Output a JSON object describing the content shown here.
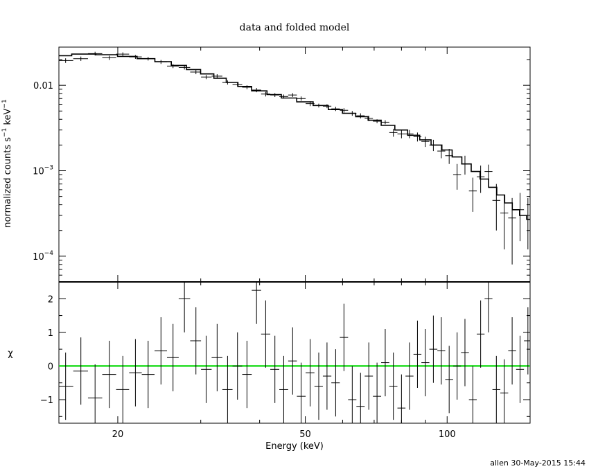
{
  "chart_data": {
    "title": "data and folded model",
    "footer": "allen 30-May-2015 15:44",
    "x_axis": {
      "label": "Energy (keV)",
      "scale": "log",
      "range": [
        15,
        150
      ],
      "tick_labels": [
        {
          "value": 20,
          "label": "20"
        },
        {
          "value": 50,
          "label": "50"
        },
        {
          "value": 100,
          "label": "100"
        }
      ]
    },
    "panels": [
      {
        "type": "scatter",
        "name": "spectrum",
        "ylabel": "normalized counts s",
        "ylabel_sup1": "−1",
        "ylabel_mid": " keV",
        "ylabel_sup2": "−1",
        "yscale": "log",
        "ylim": [
          5e-05,
          0.028
        ],
        "ytick_labels": [
          {
            "value": 0.01,
            "label": "0.01"
          },
          {
            "value": 0.001,
            "base": "10",
            "exp": "−3"
          },
          {
            "value": 0.0001,
            "base": "10",
            "exp": "−4"
          }
        ],
        "model_color": "#000000",
        "data": [
          [
            15.5,
            0.0195,
            0.0012
          ],
          [
            16.7,
            0.0205,
            0.0012
          ],
          [
            17.9,
            0.0235,
            0.0012
          ],
          [
            19.2,
            0.021,
            0.0012
          ],
          [
            20.5,
            0.0232,
            0.0011
          ],
          [
            21.8,
            0.0215,
            0.0011
          ],
          [
            23.2,
            0.0205,
            0.001
          ],
          [
            24.7,
            0.0188,
            0.001
          ],
          [
            26.2,
            0.0168,
            0.0009
          ],
          [
            27.7,
            0.0162,
            0.0009
          ],
          [
            29.3,
            0.0143,
            0.0008
          ],
          [
            30.8,
            0.0125,
            0.0007
          ],
          [
            32.5,
            0.0128,
            0.0007
          ],
          [
            34.2,
            0.0108,
            0.0006
          ],
          [
            35.9,
            0.0102,
            0.0006
          ],
          [
            37.6,
            0.0095,
            0.0005
          ],
          [
            39.4,
            0.0088,
            0.0005
          ],
          [
            41.2,
            0.0079,
            0.0005
          ],
          [
            43.1,
            0.0077,
            0.0004
          ],
          [
            45.0,
            0.0074,
            0.0004
          ],
          [
            47.0,
            0.0077,
            0.0004
          ],
          [
            49.0,
            0.007,
            0.0004
          ],
          [
            51.2,
            0.0061,
            0.0004
          ],
          [
            53.4,
            0.0058,
            0.0003
          ],
          [
            55.6,
            0.0057,
            0.0003
          ],
          [
            58.0,
            0.0053,
            0.0003
          ],
          [
            60.4,
            0.0051,
            0.0003
          ],
          [
            62.9,
            0.0047,
            0.0003
          ],
          [
            65.5,
            0.0044,
            0.0003
          ],
          [
            68.2,
            0.0041,
            0.0003
          ],
          [
            71.0,
            0.0038,
            0.0002
          ],
          [
            73.9,
            0.0037,
            0.0002
          ],
          [
            76.9,
            0.0028,
            0.0003
          ],
          [
            80.0,
            0.0027,
            0.0003
          ],
          [
            83.2,
            0.0027,
            0.0003
          ],
          [
            86.5,
            0.0025,
            0.0003
          ],
          [
            89.9,
            0.0022,
            0.0003
          ],
          [
            93.5,
            0.002,
            0.0003
          ],
          [
            97.2,
            0.0017,
            0.0003
          ],
          [
            101.0,
            0.0015,
            0.0003
          ],
          [
            105.0,
            0.0009,
            0.0003
          ],
          [
            109.1,
            0.0012,
            0.0003
          ],
          [
            113.4,
            0.00058,
            0.00025
          ],
          [
            117.8,
            0.00085,
            0.0003
          ],
          [
            122.4,
            0.00098,
            0.0002
          ],
          [
            127.2,
            0.00045,
            0.00025
          ],
          [
            132.2,
            0.00032,
            0.0002
          ],
          [
            137.4,
            0.00028,
            0.0002
          ],
          [
            142.8,
            0.00035,
            0.0002
          ],
          [
            148.4,
            0.0003,
            0.00018
          ]
        ],
        "model": [
          [
            15.0,
            0.0222
          ],
          [
            17.0,
            0.0232
          ],
          [
            19.0,
            0.0228
          ],
          [
            21.0,
            0.0218
          ],
          [
            23.0,
            0.0205
          ],
          [
            25.0,
            0.0189
          ],
          [
            27.0,
            0.0171
          ],
          [
            29.0,
            0.0153
          ],
          [
            31.0,
            0.0136
          ],
          [
            33.0,
            0.0121
          ],
          [
            35.0,
            0.0108
          ],
          [
            37.0,
            0.0097
          ],
          [
            40.0,
            0.0086
          ],
          [
            43.0,
            0.0078
          ],
          [
            46.0,
            0.0071
          ],
          [
            50.0,
            0.0064
          ],
          [
            54.0,
            0.0058
          ],
          [
            58.0,
            0.0052
          ],
          [
            62.0,
            0.0047
          ],
          [
            66.0,
            0.0043
          ],
          [
            70.0,
            0.0039
          ],
          [
            75.0,
            0.0034
          ],
          [
            80.0,
            0.003
          ],
          [
            85.0,
            0.0026
          ],
          [
            90.0,
            0.0023
          ],
          [
            95.0,
            0.002
          ],
          [
            100.0,
            0.00175
          ],
          [
            105.0,
            0.00145
          ],
          [
            110.0,
            0.0012
          ],
          [
            115.0,
            0.00098
          ],
          [
            120.0,
            0.0008
          ],
          [
            125.0,
            0.00064
          ],
          [
            130.0,
            0.00052
          ],
          [
            135.0,
            0.00042
          ],
          [
            140.0,
            0.00035
          ],
          [
            145.0,
            0.0003
          ],
          [
            150.0,
            0.00027
          ]
        ]
      },
      {
        "type": "scatter",
        "name": "residuals",
        "ylabel": "χ",
        "yscale": "linear",
        "ylim": [
          -1.7,
          2.5
        ],
        "ytick_labels": [
          {
            "value": 2,
            "label": "2"
          },
          {
            "value": 1,
            "label": "1"
          },
          {
            "value": 0,
            "label": "0"
          },
          {
            "value": -1,
            "label": "−1"
          }
        ],
        "zero_line_color": "#22dd22",
        "data": [
          [
            15.5,
            -0.6,
            1.0
          ],
          [
            16.7,
            -0.15,
            1.0
          ],
          [
            17.9,
            -0.95,
            1.0
          ],
          [
            19.2,
            -0.25,
            1.0
          ],
          [
            20.5,
            -0.7,
            1.0
          ],
          [
            21.8,
            -0.2,
            1.0
          ],
          [
            23.2,
            -0.25,
            1.0
          ],
          [
            24.7,
            0.45,
            1.0
          ],
          [
            26.2,
            0.25,
            1.0
          ],
          [
            27.7,
            2.0,
            1.0
          ],
          [
            29.3,
            0.75,
            1.0
          ],
          [
            30.8,
            -0.1,
            1.0
          ],
          [
            32.5,
            0.25,
            1.0
          ],
          [
            34.2,
            -0.7,
            1.0
          ],
          [
            35.9,
            0.0,
            1.0
          ],
          [
            37.6,
            -0.25,
            1.0
          ],
          [
            39.4,
            2.25,
            1.0
          ],
          [
            41.2,
            0.95,
            1.0
          ],
          [
            43.1,
            -0.1,
            1.0
          ],
          [
            45.0,
            -0.7,
            1.0
          ],
          [
            47.0,
            0.15,
            1.0
          ],
          [
            49.0,
            -0.9,
            1.0
          ],
          [
            51.2,
            -0.2,
            1.0
          ],
          [
            53.4,
            -0.6,
            1.0
          ],
          [
            55.6,
            -0.3,
            1.0
          ],
          [
            58.0,
            -0.5,
            1.0
          ],
          [
            60.4,
            0.85,
            1.0
          ],
          [
            62.9,
            -1.0,
            1.0
          ],
          [
            65.5,
            -1.2,
            1.0
          ],
          [
            68.2,
            -0.3,
            1.0
          ],
          [
            71.0,
            -0.9,
            1.0
          ],
          [
            73.9,
            0.1,
            1.0
          ],
          [
            76.9,
            -0.6,
            1.0
          ],
          [
            80.0,
            -1.25,
            1.0
          ],
          [
            83.2,
            -0.3,
            1.0
          ],
          [
            86.5,
            0.35,
            1.0
          ],
          [
            89.9,
            0.1,
            1.0
          ],
          [
            93.5,
            0.5,
            1.0
          ],
          [
            97.2,
            0.45,
            1.0
          ],
          [
            101.0,
            -0.4,
            1.0
          ],
          [
            105.0,
            0.0,
            1.0
          ],
          [
            109.1,
            0.4,
            1.0
          ],
          [
            113.4,
            -1.0,
            1.0
          ],
          [
            117.8,
            0.95,
            1.0
          ],
          [
            122.4,
            2.0,
            1.0
          ],
          [
            127.2,
            -0.7,
            1.0
          ],
          [
            132.2,
            -0.8,
            1.0
          ],
          [
            137.4,
            0.45,
            1.0
          ],
          [
            142.8,
            -0.1,
            1.0
          ],
          [
            148.4,
            0.75,
            1.0
          ]
        ]
      }
    ]
  }
}
